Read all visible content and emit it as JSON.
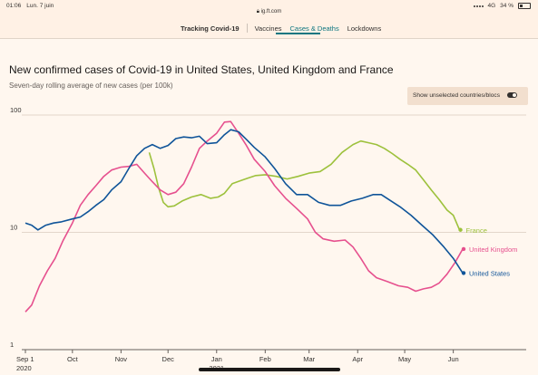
{
  "status_bar": {
    "time": "01:06",
    "date": "Lun. 7 juin",
    "url": "ig.ft.com",
    "signal": "4G",
    "battery": "34 %"
  },
  "nav": {
    "title": "Tracking Covid-19",
    "items": [
      {
        "label": "Vaccines",
        "active": false
      },
      {
        "label": "Cases & Deaths",
        "active": true
      },
      {
        "label": "Lockdowns",
        "active": false
      }
    ]
  },
  "header": {
    "title": "New confirmed cases of Covid-19 in United States, United Kingdom and France",
    "subtitle": "Seven-day rolling average of new cases (per 100k)"
  },
  "toggle": {
    "label": "Show unselected countries/blocs",
    "on": true
  },
  "colors": {
    "us": "#0f5499",
    "uk": "#e6508e",
    "france": "#9dc13c",
    "background": "#fff7ef"
  },
  "chart_data": {
    "type": "line",
    "title": "New confirmed cases of Covid-19 in United States, United Kingdom and France",
    "subtitle": "Seven-day rolling average of new cases (per 100k)",
    "xlabel": "",
    "ylabel": "",
    "y_scale": "log",
    "ylim": [
      1,
      100
    ],
    "y_ticks": [
      1,
      10,
      100
    ],
    "y_tick_labels": [
      "1",
      "10",
      "100"
    ],
    "x_range": [
      "2020-09-01",
      "2021-06-07"
    ],
    "x_ticks": [
      {
        "date": "2020-09-01",
        "label": "Sep 1",
        "sub": "2020"
      },
      {
        "date": "2020-10-01",
        "label": "Oct",
        "sub": ""
      },
      {
        "date": "2020-11-01",
        "label": "Nov",
        "sub": ""
      },
      {
        "date": "2020-12-01",
        "label": "Dec",
        "sub": ""
      },
      {
        "date": "2021-01-01",
        "label": "Jan",
        "sub": "2021"
      },
      {
        "date": "2021-02-01",
        "label": "Feb",
        "sub": ""
      },
      {
        "date": "2021-03-01",
        "label": "Mar",
        "sub": ""
      },
      {
        "date": "2021-04-01",
        "label": "Apr",
        "sub": ""
      },
      {
        "date": "2021-05-01",
        "label": "May",
        "sub": ""
      },
      {
        "date": "2021-06-01",
        "label": "Jun",
        "sub": ""
      }
    ],
    "grid": true,
    "series": [
      {
        "name": "France",
        "color": "#9dc13c",
        "end_label_value": 10.5,
        "points": [
          [
            "2020-11-19",
            48
          ],
          [
            "2020-11-22",
            35
          ],
          [
            "2020-11-25",
            24
          ],
          [
            "2020-11-28",
            18
          ],
          [
            "2020-12-01",
            16.5
          ],
          [
            "2020-12-05",
            16.8
          ],
          [
            "2020-12-10",
            18.5
          ],
          [
            "2020-12-16",
            20
          ],
          [
            "2020-12-22",
            21
          ],
          [
            "2020-12-28",
            19.5
          ],
          [
            "2021-01-02",
            20
          ],
          [
            "2021-01-06",
            21.5
          ],
          [
            "2021-01-11",
            26
          ],
          [
            "2021-01-16",
            27.5
          ],
          [
            "2021-01-21",
            29
          ],
          [
            "2021-01-26",
            30.5
          ],
          [
            "2021-02-01",
            31
          ],
          [
            "2021-02-08",
            30
          ],
          [
            "2021-02-15",
            28.5
          ],
          [
            "2021-02-22",
            30
          ],
          [
            "2021-03-01",
            32
          ],
          [
            "2021-03-08",
            33
          ],
          [
            "2021-03-15",
            38
          ],
          [
            "2021-03-22",
            48
          ],
          [
            "2021-03-29",
            56
          ],
          [
            "2021-04-03",
            60
          ],
          [
            "2021-04-08",
            58
          ],
          [
            "2021-04-13",
            56
          ],
          [
            "2021-04-18",
            52
          ],
          [
            "2021-04-23",
            47
          ],
          [
            "2021-04-28",
            42
          ],
          [
            "2021-05-03",
            38
          ],
          [
            "2021-05-08",
            34
          ],
          [
            "2021-05-13",
            28
          ],
          [
            "2021-05-18",
            23
          ],
          [
            "2021-05-23",
            19
          ],
          [
            "2021-05-28",
            15.5
          ],
          [
            "2021-06-01",
            14
          ],
          [
            "2021-06-05",
            10.5
          ]
        ]
      },
      {
        "name": "United Kingdom",
        "color": "#e6508e",
        "end_label_value": 7.2,
        "points": [
          [
            "2020-09-01",
            2.1
          ],
          [
            "2020-09-05",
            2.4
          ],
          [
            "2020-09-10",
            3.5
          ],
          [
            "2020-09-15",
            4.7
          ],
          [
            "2020-09-20",
            6
          ],
          [
            "2020-09-25",
            8.5
          ],
          [
            "2020-10-01",
            12
          ],
          [
            "2020-10-06",
            17
          ],
          [
            "2020-10-11",
            21
          ],
          [
            "2020-10-16",
            25
          ],
          [
            "2020-10-21",
            30
          ],
          [
            "2020-10-26",
            34
          ],
          [
            "2020-11-01",
            36
          ],
          [
            "2020-11-06",
            36.5
          ],
          [
            "2020-11-11",
            38
          ],
          [
            "2020-11-16",
            32
          ],
          [
            "2020-11-21",
            27
          ],
          [
            "2020-11-26",
            23
          ],
          [
            "2020-12-01",
            21
          ],
          [
            "2020-12-06",
            22
          ],
          [
            "2020-12-11",
            26
          ],
          [
            "2020-12-16",
            36
          ],
          [
            "2020-12-21",
            52
          ],
          [
            "2020-12-26",
            60
          ],
          [
            "2021-01-01",
            70
          ],
          [
            "2021-01-06",
            87
          ],
          [
            "2021-01-10",
            88
          ],
          [
            "2021-01-15",
            70
          ],
          [
            "2021-01-20",
            55
          ],
          [
            "2021-01-25",
            42
          ],
          [
            "2021-02-01",
            33
          ],
          [
            "2021-02-07",
            25
          ],
          [
            "2021-02-14",
            19.5
          ],
          [
            "2021-02-21",
            16
          ],
          [
            "2021-02-28",
            13
          ],
          [
            "2021-03-05",
            10
          ],
          [
            "2021-03-10",
            8.8
          ],
          [
            "2021-03-17",
            8.4
          ],
          [
            "2021-03-24",
            8.6
          ],
          [
            "2021-03-29",
            7.5
          ],
          [
            "2021-04-03",
            6
          ],
          [
            "2021-04-08",
            4.7
          ],
          [
            "2021-04-13",
            4.1
          ],
          [
            "2021-04-20",
            3.8
          ],
          [
            "2021-04-27",
            3.5
          ],
          [
            "2021-05-03",
            3.4
          ],
          [
            "2021-05-08",
            3.15
          ],
          [
            "2021-05-13",
            3.3
          ],
          [
            "2021-05-18",
            3.4
          ],
          [
            "2021-05-23",
            3.7
          ],
          [
            "2021-05-28",
            4.4
          ],
          [
            "2021-06-02",
            5.5
          ],
          [
            "2021-06-07",
            7.2
          ]
        ]
      },
      {
        "name": "United States",
        "color": "#0f5499",
        "end_label_value": 4.5,
        "points": [
          [
            "2020-09-01",
            12
          ],
          [
            "2020-09-05",
            11.5
          ],
          [
            "2020-09-09",
            10.5
          ],
          [
            "2020-09-14",
            11.5
          ],
          [
            "2020-09-19",
            12
          ],
          [
            "2020-09-24",
            12.3
          ],
          [
            "2020-10-01",
            13
          ],
          [
            "2020-10-06",
            13.5
          ],
          [
            "2020-10-11",
            15
          ],
          [
            "2020-10-16",
            17
          ],
          [
            "2020-10-21",
            19
          ],
          [
            "2020-10-26",
            23
          ],
          [
            "2020-11-01",
            27
          ],
          [
            "2020-11-06",
            35
          ],
          [
            "2020-11-11",
            45
          ],
          [
            "2020-11-16",
            52
          ],
          [
            "2020-11-21",
            56
          ],
          [
            "2020-11-26",
            52
          ],
          [
            "2020-12-01",
            55
          ],
          [
            "2020-12-06",
            63
          ],
          [
            "2020-12-11",
            65
          ],
          [
            "2020-12-16",
            64
          ],
          [
            "2020-12-21",
            66
          ],
          [
            "2020-12-26",
            57
          ],
          [
            "2021-01-01",
            58
          ],
          [
            "2021-01-06",
            68
          ],
          [
            "2021-01-10",
            75
          ],
          [
            "2021-01-15",
            72
          ],
          [
            "2021-01-20",
            62
          ],
          [
            "2021-01-25",
            53
          ],
          [
            "2021-02-01",
            44
          ],
          [
            "2021-02-07",
            35
          ],
          [
            "2021-02-14",
            26
          ],
          [
            "2021-02-21",
            21
          ],
          [
            "2021-02-28",
            21
          ],
          [
            "2021-03-07",
            18
          ],
          [
            "2021-03-14",
            17
          ],
          [
            "2021-03-21",
            17
          ],
          [
            "2021-03-28",
            18.5
          ],
          [
            "2021-04-04",
            19.5
          ],
          [
            "2021-04-11",
            21
          ],
          [
            "2021-04-16",
            21
          ],
          [
            "2021-04-21",
            19
          ],
          [
            "2021-04-28",
            16.5
          ],
          [
            "2021-05-05",
            14
          ],
          [
            "2021-05-12",
            11.5
          ],
          [
            "2021-05-19",
            9.5
          ],
          [
            "2021-05-26",
            7.5
          ],
          [
            "2021-06-01",
            6
          ],
          [
            "2021-06-07",
            4.5
          ]
        ]
      }
    ]
  }
}
